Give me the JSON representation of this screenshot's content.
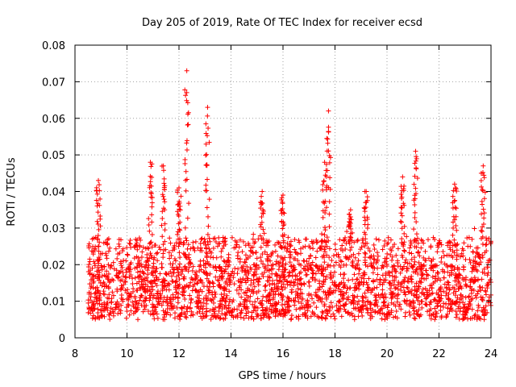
{
  "chart_data": {
    "type": "scatter",
    "title": "Day 205 of 2019, Rate Of TEC Index for receiver ecsd",
    "xlabel": "GPS time / hours",
    "ylabel": "ROTI / TECUs",
    "xlim": [
      8,
      24
    ],
    "ylim": [
      0,
      0.08
    ],
    "xticks": [
      8,
      10,
      12,
      14,
      16,
      18,
      20,
      22,
      24
    ],
    "xtick_labels": [
      "8",
      "10",
      "12",
      "14",
      "16",
      "18",
      "20",
      "22",
      "24"
    ],
    "yticks": [
      0,
      0.01,
      0.02,
      0.03,
      0.04,
      0.05,
      0.06,
      0.07,
      0.08
    ],
    "ytick_labels": [
      "0",
      "0.01",
      "0.02",
      "0.03",
      "0.04",
      "0.05",
      "0.06",
      "0.07",
      "0.08"
    ],
    "grid": true,
    "marker": "+",
    "color": "#ff0000",
    "series": [
      {
        "name": "ROTI",
        "x_range": [
          8.5,
          24.0
        ],
        "baseline_range": [
          0.005,
          0.02
        ],
        "typical_peak": 0.03,
        "bursts": [
          {
            "x": 8.9,
            "peak": 0.043
          },
          {
            "x": 10.9,
            "peak": 0.048
          },
          {
            "x": 11.4,
            "peak": 0.047
          },
          {
            "x": 12.0,
            "peak": 0.041
          },
          {
            "x": 12.3,
            "peak": 0.073
          },
          {
            "x": 13.1,
            "peak": 0.063
          },
          {
            "x": 15.2,
            "peak": 0.04
          },
          {
            "x": 16.0,
            "peak": 0.039
          },
          {
            "x": 17.6,
            "peak": 0.048
          },
          {
            "x": 17.75,
            "peak": 0.062
          },
          {
            "x": 18.6,
            "peak": 0.035
          },
          {
            "x": 19.2,
            "peak": 0.04
          },
          {
            "x": 20.6,
            "peak": 0.044
          },
          {
            "x": 21.1,
            "peak": 0.051
          },
          {
            "x": 22.6,
            "peak": 0.042
          },
          {
            "x": 23.7,
            "peak": 0.047
          }
        ]
      }
    ]
  }
}
